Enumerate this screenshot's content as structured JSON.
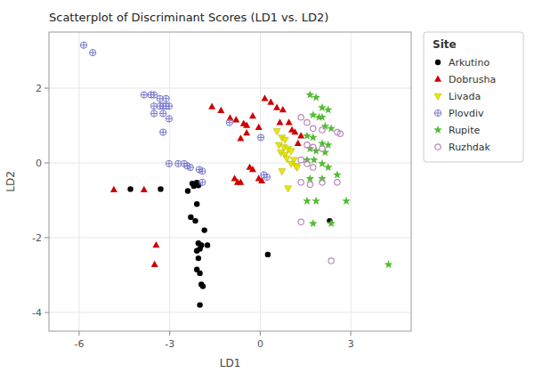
{
  "chart_data": {
    "type": "scatter",
    "title": "Scatterplot of Discriminant Scores (LD1 vs. LD2)",
    "x_label": "LD1",
    "y_label": "LD2",
    "xlim": [
      -7,
      5
    ],
    "ylim": [
      -4.5,
      3.5
    ],
    "xticks": [
      -6,
      -3,
      0,
      3
    ],
    "yticks": [
      -4,
      -2,
      0,
      2
    ],
    "grid": true,
    "legend": "right",
    "legend_title": "Site",
    "series": [
      {
        "name": "Arkutino",
        "color": "#000000",
        "marker": "circle",
        "x": [
          -2.25,
          -2.15,
          -2.1,
          -2.05,
          -2.2,
          -2.4,
          -2.1,
          -2.3,
          -2.15,
          -2.05,
          -1.95,
          -2.0,
          -2.1,
          -2.05,
          -2.1,
          -2.0,
          -1.95,
          -1.9,
          -2.0,
          -1.85,
          -1.75,
          0.25,
          2.3,
          -3.3,
          -4.3
        ],
        "values": [
          -0.55,
          -0.58,
          -0.53,
          -0.6,
          -0.62,
          -0.75,
          -1.1,
          -1.45,
          -1.55,
          -2.15,
          -2.2,
          -2.3,
          -2.35,
          -2.55,
          -2.85,
          -2.95,
          -3.25,
          -3.3,
          -3.8,
          -1.8,
          -2.2,
          -2.45,
          -1.55,
          -0.7,
          -0.7
        ]
      },
      {
        "name": "Dobrusha",
        "color": "#cc0000",
        "marker": "triangle-up",
        "x": [
          -1.6,
          -1.3,
          -1.0,
          -0.8,
          -0.55,
          -0.45,
          -0.25,
          -0.05,
          -0.65,
          -0.45,
          0.15,
          0.35,
          0.55,
          0.75,
          0.65,
          0.95,
          1.05,
          1.15,
          1.35,
          1.25,
          -0.35,
          -0.25,
          -0.05,
          0.05,
          -0.65,
          -0.75,
          -0.85,
          -4.85,
          -3.85,
          -3.45,
          -3.5
        ],
        "values": [
          1.5,
          1.4,
          1.2,
          1.15,
          1.05,
          1.0,
          1.25,
          0.95,
          0.65,
          0.8,
          1.72,
          1.62,
          1.48,
          1.42,
          1.08,
          1.08,
          0.88,
          0.82,
          0.72,
          0.52,
          -0.12,
          -0.18,
          -0.42,
          -0.48,
          -0.52,
          -0.52,
          -0.42,
          -0.72,
          -0.72,
          -2.2,
          -2.72
        ]
      },
      {
        "name": "Livada",
        "color": "#e8e800",
        "marker": "triangle-down",
        "x": [
          0.55,
          0.72,
          0.82,
          0.62,
          0.78,
          0.92,
          1.02,
          0.68,
          0.82,
          0.88,
          1.12,
          1.02,
          1.18,
          1.22,
          0.72,
          0.92
        ],
        "values": [
          0.85,
          0.68,
          0.62,
          0.48,
          0.42,
          0.38,
          0.32,
          0.28,
          0.22,
          0.12,
          0.08,
          -0.02,
          -0.08,
          -0.12,
          -0.22,
          -0.68
        ]
      },
      {
        "name": "Plovdiv",
        "color": "#7777cc",
        "marker": "circle-plus",
        "x": [
          -5.85,
          -5.55,
          -3.85,
          -3.62,
          -3.52,
          -3.32,
          -3.12,
          -3.52,
          -3.32,
          -3.22,
          -3.12,
          -3.02,
          -3.52,
          -3.22,
          -3.02,
          -3.22,
          -3.02,
          -2.72,
          -2.52,
          -2.42,
          -2.32,
          -2.02,
          -1.92,
          -1.92,
          0.12,
          0.22,
          0.02,
          -1.02
        ],
        "values": [
          3.15,
          2.95,
          1.82,
          1.82,
          1.82,
          1.72,
          1.72,
          1.52,
          1.52,
          1.52,
          1.52,
          1.52,
          1.32,
          1.32,
          1.18,
          0.82,
          -0.02,
          -0.02,
          -0.02,
          -0.08,
          -0.12,
          -0.18,
          -0.22,
          -0.52,
          -0.32,
          -0.38,
          0.68,
          1.08
        ]
      },
      {
        "name": "Rupite",
        "color": "#55bb33",
        "marker": "star",
        "x": [
          1.65,
          1.85,
          2.05,
          2.25,
          1.75,
          1.95,
          2.05,
          2.15,
          2.35,
          1.55,
          1.75,
          2.05,
          2.25,
          1.65,
          1.85,
          2.15,
          1.55,
          1.78,
          2.05,
          2.25,
          1.65,
          2.05,
          2.55,
          1.55,
          1.85,
          2.85,
          1.75,
          2.35,
          4.25
        ],
        "values": [
          1.82,
          1.75,
          1.48,
          1.42,
          1.28,
          1.22,
          1.22,
          0.98,
          0.92,
          0.72,
          0.68,
          0.52,
          0.48,
          0.38,
          0.32,
          0.28,
          0.08,
          0.08,
          -0.02,
          -0.12,
          -0.42,
          -0.42,
          -0.32,
          -1.02,
          -1.02,
          -1.02,
          -1.62,
          -1.62,
          -2.72
        ]
      },
      {
        "name": "Ruzhdak",
        "color": "#bb88bb",
        "marker": "circle-open",
        "x": [
          1.35,
          1.55,
          1.75,
          2.05,
          2.55,
          2.65,
          1.55,
          1.75,
          2.05,
          1.35,
          1.55,
          1.75,
          1.35,
          1.65,
          2.05,
          2.55,
          1.35,
          2.35
        ],
        "values": [
          1.22,
          1.08,
          0.92,
          0.88,
          0.82,
          0.78,
          0.48,
          0.42,
          0.38,
          0.08,
          -0.02,
          -0.12,
          -0.52,
          -0.58,
          -0.52,
          -0.52,
          -1.58,
          -2.62
        ]
      }
    ]
  }
}
